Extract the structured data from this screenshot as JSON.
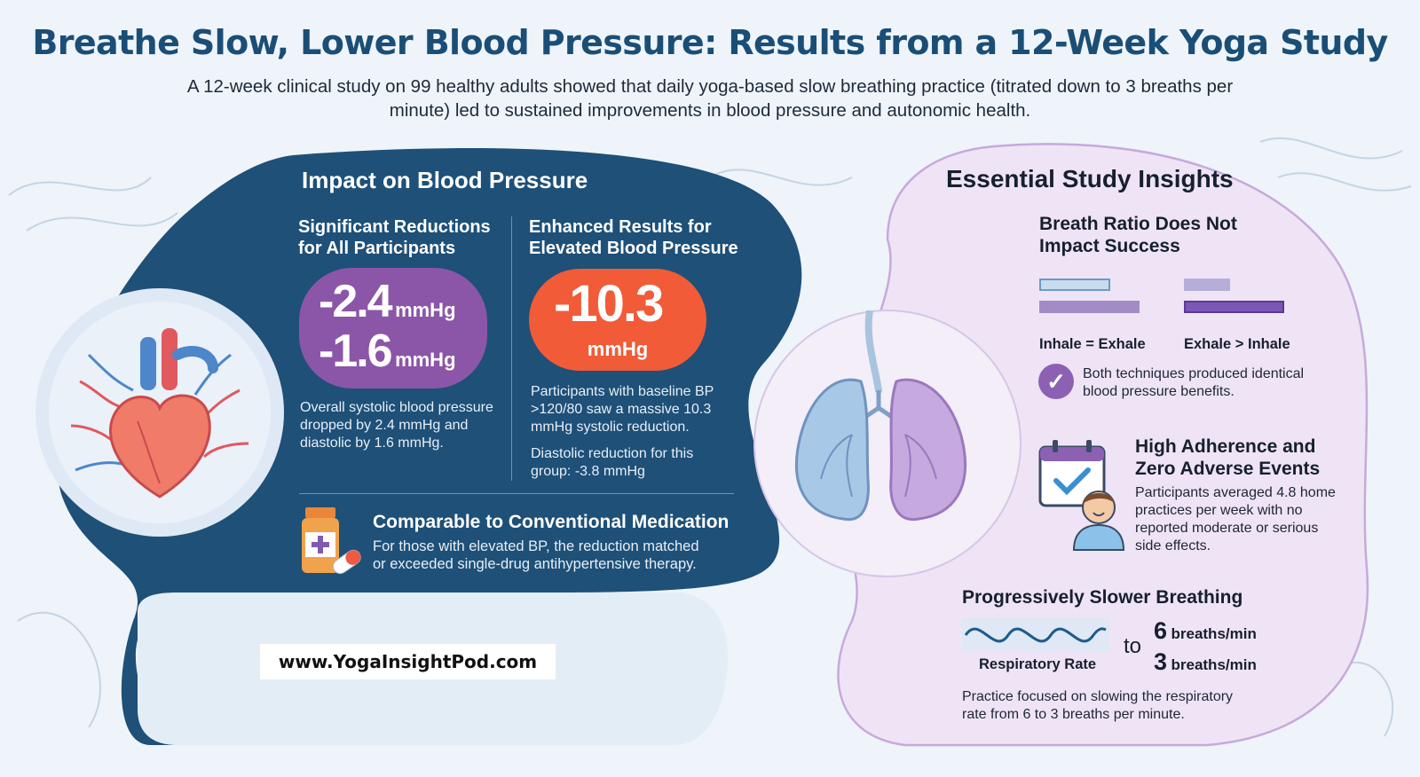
{
  "header": {
    "title": "Breathe Slow, Lower Blood Pressure: Results from a 12-Week Yoga Study",
    "subtitle": "A 12-week clinical study on 99 healthy adults showed that daily yoga-based slow breathing practice (titrated down to 3 breaths per minute) led to sustained improvements in blood pressure and autonomic health."
  },
  "blood_pressure": {
    "title": "Impact on Blood Pressure",
    "all": {
      "heading_line1": "Significant Reductions",
      "heading_line2": "for All Participants",
      "systolic_value": "-2.4",
      "systolic_unit": "mmHg",
      "diastolic_value": "-1.6",
      "diastolic_unit": "mmHg",
      "desc_line1": "Overall systolic blood pressure",
      "desc_line2": "dropped by 2.4 mmHg and",
      "desc_line3": "diastolic by 1.6 mmHg."
    },
    "elevated": {
      "heading_line1": "Enhanced Results for",
      "heading_line2": "Elevated Blood Pressure",
      "value": "-10.3",
      "unit": "mmHg",
      "desc_line1": "Participants with baseline BP",
      "desc_line2": ">120/80 saw a massive 10.3",
      "desc_line3": "mmHg systolic reduction.",
      "diastolic_line1": "Diastolic reduction for this",
      "diastolic_line2": "group: -3.8 mmHg"
    },
    "medication": {
      "title": "Comparable to Conventional Medication",
      "desc_line1": "For those with elevated BP, the reduction matched",
      "desc_line2": "or exceeded single-drug antihypertensive therapy."
    }
  },
  "website": "www.YogaInsightPod.com",
  "insights": {
    "title": "Essential Study Insights",
    "ratio": {
      "heading_line1": "Breath Ratio Does Not",
      "heading_line2": "Impact Success",
      "label_equal": "Inhale = Exhale",
      "label_longer": "Exhale > Inhale",
      "note_line1": "Both techniques produced identical",
      "note_line2": "blood pressure benefits."
    },
    "adherence": {
      "heading_line1": "High Adherence and",
      "heading_line2": "Zero Adverse Events",
      "desc_line1": "Participants averaged 4.8 home",
      "desc_line2": "practices per week with no",
      "desc_line3": "reported moderate or serious",
      "desc_line4": "side effects."
    },
    "breathing": {
      "heading": "Progressively Slower Breathing",
      "rate_label": "Respiratory Rate",
      "to_word": "to",
      "from_num": "6",
      "to_num": "3",
      "unit": "breaths/min",
      "desc_line1": "Practice focused on slowing the respiratory",
      "desc_line2": "rate from 6 to 3 breaths per minute."
    }
  },
  "colors": {
    "title": "#1a4e76",
    "dark_panel": "#1e5078",
    "purple_accent": "#8b56a8",
    "orange_accent": "#f15b37",
    "lavender_panel": "#efe4f5"
  },
  "icons": [
    "heart-icon",
    "lungs-icon",
    "medicine-bottle-icon",
    "pill-icon",
    "check-icon",
    "calendar-icon",
    "person-icon",
    "wave-icon"
  ]
}
